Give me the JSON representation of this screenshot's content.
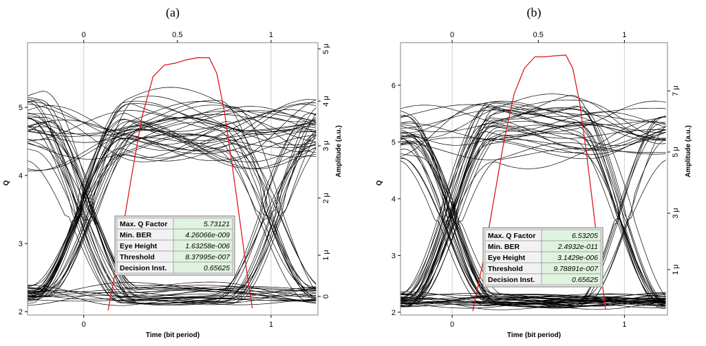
{
  "chart_data": [
    {
      "type": "line",
      "panel_label": "(a)",
      "xlabel": "Time (bit period)",
      "ylabel_left": "Q",
      "ylabel_right": "Amplitude (a.u.)",
      "x_ticks_bottom": [
        0,
        1
      ],
      "x_ticks_top": [
        0,
        0.5,
        1
      ],
      "y_left_ticks": [
        2,
        3,
        4,
        5
      ],
      "y_right_ticks": [
        "0",
        "1 μ",
        "2 μ",
        "3 μ",
        "4 μ",
        "5 μ"
      ],
      "xlim": [
        -0.3,
        1.25
      ],
      "ylim_left": [
        1.95,
        5.95
      ],
      "q_curve": {
        "x": [
          0.13,
          0.19,
          0.25,
          0.31,
          0.37,
          0.43,
          0.49,
          0.55,
          0.61,
          0.67,
          0.71,
          0.75,
          0.79,
          0.83,
          0.87,
          0.9
        ],
        "y": [
          2.02,
          2.9,
          3.9,
          4.85,
          5.45,
          5.62,
          5.65,
          5.7,
          5.73,
          5.73,
          5.5,
          4.95,
          4.2,
          3.4,
          2.6,
          2.05
        ]
      },
      "eye": {
        "n_traces": 70,
        "high_level": 4.7,
        "low_level": 2.25,
        "high_spread": 0.35,
        "low_spread": 0.13,
        "upper_band": [
          4.3,
          5.55
        ],
        "lower_band": [
          2.05,
          2.5
        ]
      },
      "info_box": [
        {
          "label": "Max. Q Factor",
          "value": "5.73121"
        },
        {
          "label": "Min. BER",
          "value": "4.26066e-009"
        },
        {
          "label": "Eye Height",
          "value": "1.63258e-006"
        },
        {
          "label": "Threshold",
          "value": "8.37995e-007"
        },
        {
          "label": "Decision Inst.",
          "value": "0.65625"
        }
      ]
    },
    {
      "type": "line",
      "panel_label": "(b)",
      "xlabel": "Time (bit period)",
      "ylabel_left": "Q",
      "ylabel_right": "Amplitude (a.u.)",
      "x_ticks_bottom": [
        0,
        1
      ],
      "x_ticks_top": [
        0,
        0.5,
        1
      ],
      "y_left_ticks": [
        2,
        3,
        4,
        5,
        6
      ],
      "y_right_ticks": [
        "1 μ",
        "3 μ",
        "5 μ",
        "7 μ"
      ],
      "xlim": [
        -0.3,
        1.25
      ],
      "ylim_left": [
        1.95,
        6.75
      ],
      "q_curve": {
        "x": [
          0.12,
          0.18,
          0.24,
          0.3,
          0.36,
          0.42,
          0.48,
          0.54,
          0.6,
          0.66,
          0.7,
          0.74,
          0.78,
          0.82,
          0.86,
          0.89
        ],
        "y": [
          2.02,
          2.9,
          3.95,
          5.0,
          5.85,
          6.3,
          6.5,
          6.5,
          6.52,
          6.53,
          6.3,
          5.7,
          4.8,
          3.8,
          2.8,
          2.05
        ]
      },
      "eye": {
        "n_traces": 75,
        "high_level": 5.2,
        "low_level": 2.2,
        "high_spread": 0.45,
        "low_spread": 0.1,
        "upper_band": [
          4.6,
          6.2
        ],
        "lower_band": [
          2.05,
          2.5
        ]
      },
      "info_box": [
        {
          "label": "Max. Q Factor",
          "value": "6.53205"
        },
        {
          "label": "Min. BER",
          "value": "2.4932e-011"
        },
        {
          "label": "Eye Height",
          "value": "3.1429e-006"
        },
        {
          "label": "Threshold",
          "value": "9.78891e-007"
        },
        {
          "label": "Decision Inst.",
          "value": "0.65625"
        }
      ]
    }
  ],
  "colors": {
    "q_curve": "#e01818",
    "traces": "#000000",
    "frame": "#808080",
    "info_value_bg": "#dff3df",
    "info_label_bg": "#f2f2f2"
  }
}
